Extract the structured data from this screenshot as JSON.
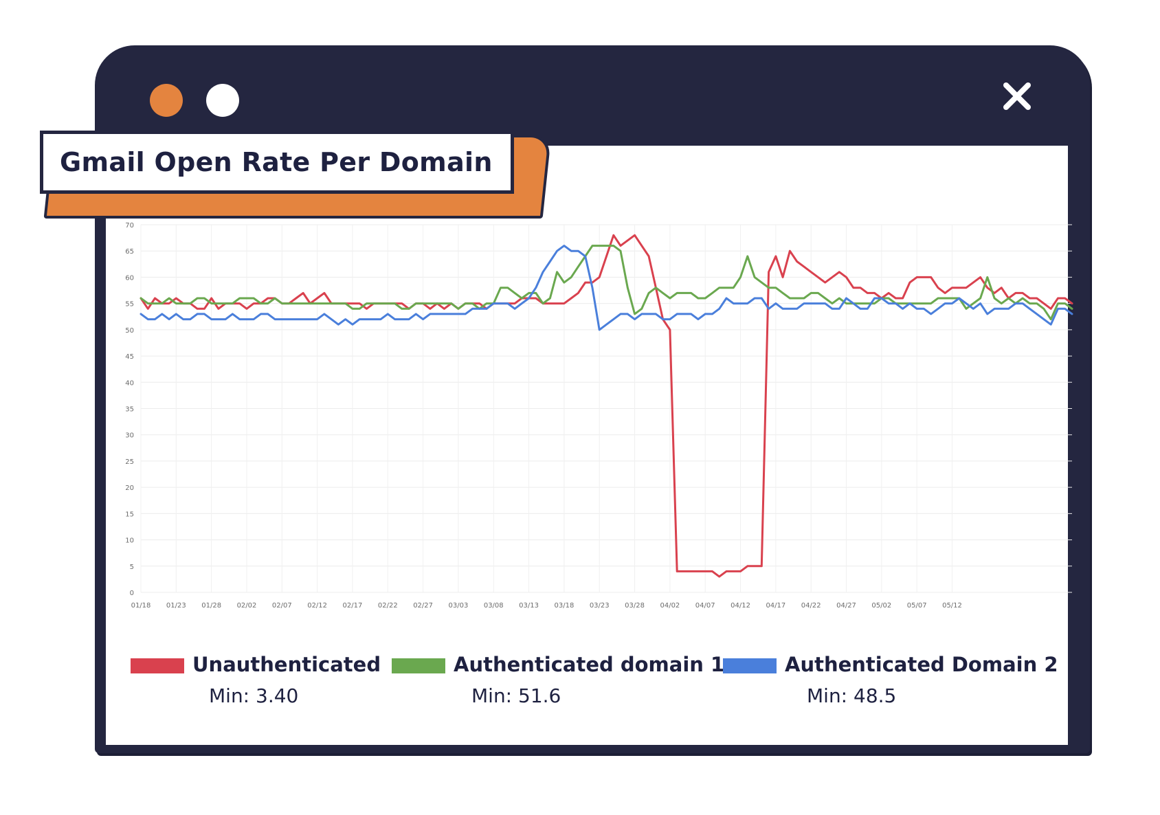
{
  "window": {
    "colors": {
      "frame": "#242640",
      "dot_orange": "#e4843f",
      "dot_white": "#ffffff",
      "title_accent": "#e4843f"
    },
    "icons": [
      "window-dot-icon",
      "window-dot-icon",
      "close-icon"
    ]
  },
  "title": "Gmail Open Rate Per Domain",
  "chart_data": {
    "type": "line",
    "title": "Gmail Open Rate Per Domain",
    "xlabel": "",
    "ylabel": "",
    "ylim": [
      0,
      70
    ],
    "yticks": [
      "0",
      "5",
      "10",
      "15",
      "20",
      "25",
      "30",
      "35",
      "40",
      "45",
      "50",
      "55",
      "60",
      "65",
      "70"
    ],
    "xticks": [
      "01/18",
      "01/23",
      "01/28",
      "02/02",
      "02/07",
      "02/12",
      "02/17",
      "02/22",
      "02/27",
      "03/03",
      "03/08",
      "03/13",
      "03/18",
      "03/23",
      "03/28",
      "04/02",
      "04/07",
      "04/12",
      "04/17",
      "04/22",
      "04/27",
      "05/02",
      "05/07",
      "05/12"
    ],
    "grid": true,
    "legend_position": "bottom",
    "x_start": "01/18",
    "x_end": "05/14",
    "series": [
      {
        "name": "Unauthenticated",
        "color": "#d9414e",
        "min_label": "Min: 3.40",
        "values": [
          56,
          54,
          56,
          55,
          55,
          56,
          55,
          55,
          54,
          54,
          56,
          54,
          55,
          55,
          55,
          54,
          55,
          55,
          56,
          56,
          55,
          55,
          56,
          57,
          55,
          56,
          57,
          55,
          55,
          55,
          55,
          55,
          54,
          55,
          55,
          55,
          55,
          55,
          54,
          55,
          55,
          54,
          55,
          54,
          55,
          54,
          55,
          55,
          55,
          54,
          55,
          55,
          55,
          55,
          56,
          56,
          56,
          55,
          55,
          55,
          55,
          56,
          57,
          59,
          59,
          60,
          64,
          68,
          66,
          67,
          68,
          66,
          64,
          58,
          52,
          50,
          4,
          4,
          4,
          4,
          4,
          4,
          3,
          4,
          4,
          4,
          5,
          5,
          5,
          61,
          64,
          60,
          65,
          63,
          62,
          61,
          60,
          59,
          60,
          61,
          60,
          58,
          58,
          57,
          57,
          56,
          57,
          56,
          56,
          59,
          60,
          60,
          60,
          58,
          57,
          58,
          58,
          58,
          59,
          60,
          58,
          57,
          58,
          56,
          57,
          57,
          56,
          56,
          55,
          54,
          56,
          56,
          55
        ]
      },
      {
        "name": "Authenticated domain 1",
        "color": "#6aa84f",
        "min_label": "Min: 51.6",
        "values": [
          56,
          55,
          55,
          55,
          56,
          55,
          55,
          55,
          56,
          56,
          55,
          55,
          55,
          55,
          56,
          56,
          56,
          55,
          55,
          56,
          55,
          55,
          55,
          55,
          55,
          55,
          55,
          55,
          55,
          55,
          54,
          54,
          55,
          55,
          55,
          55,
          55,
          54,
          54,
          55,
          55,
          55,
          55,
          55,
          55,
          54,
          55,
          55,
          54,
          55,
          55,
          58,
          58,
          57,
          56,
          57,
          57,
          55,
          56,
          61,
          59,
          60,
          62,
          64,
          66,
          66,
          66,
          66,
          65,
          58,
          53,
          54,
          57,
          58,
          57,
          56,
          57,
          57,
          57,
          56,
          56,
          57,
          58,
          58,
          58,
          60,
          64,
          60,
          59,
          58,
          58,
          57,
          56,
          56,
          56,
          57,
          57,
          56,
          55,
          56,
          55,
          55,
          55,
          55,
          55,
          56,
          56,
          55,
          55,
          55,
          55,
          55,
          55,
          56,
          56,
          56,
          56,
          54,
          55,
          56,
          60,
          56,
          55,
          56,
          55,
          56,
          55,
          55,
          54,
          52,
          55,
          55,
          54
        ]
      },
      {
        "name": "Authenticated Domain 2",
        "color": "#4a7fdb",
        "min_label": "Min: 48.5",
        "values": [
          53,
          52,
          52,
          53,
          52,
          53,
          52,
          52,
          53,
          53,
          52,
          52,
          52,
          53,
          52,
          52,
          52,
          53,
          53,
          52,
          52,
          52,
          52,
          52,
          52,
          52,
          53,
          52,
          51,
          52,
          51,
          52,
          52,
          52,
          52,
          53,
          52,
          52,
          52,
          53,
          52,
          53,
          53,
          53,
          53,
          53,
          53,
          54,
          54,
          54,
          55,
          55,
          55,
          54,
          55,
          56,
          58,
          61,
          63,
          65,
          66,
          65,
          65,
          64,
          58,
          50,
          51,
          52,
          53,
          53,
          52,
          53,
          53,
          53,
          52,
          52,
          53,
          53,
          53,
          52,
          53,
          53,
          54,
          56,
          55,
          55,
          55,
          56,
          56,
          54,
          55,
          54,
          54,
          54,
          55,
          55,
          55,
          55,
          54,
          54,
          56,
          55,
          54,
          54,
          56,
          56,
          55,
          55,
          54,
          55,
          54,
          54,
          53,
          54,
          55,
          55,
          56,
          55,
          54,
          55,
          53,
          54,
          54,
          54,
          55,
          55,
          54,
          53,
          52,
          51,
          54,
          54,
          53
        ]
      }
    ]
  }
}
